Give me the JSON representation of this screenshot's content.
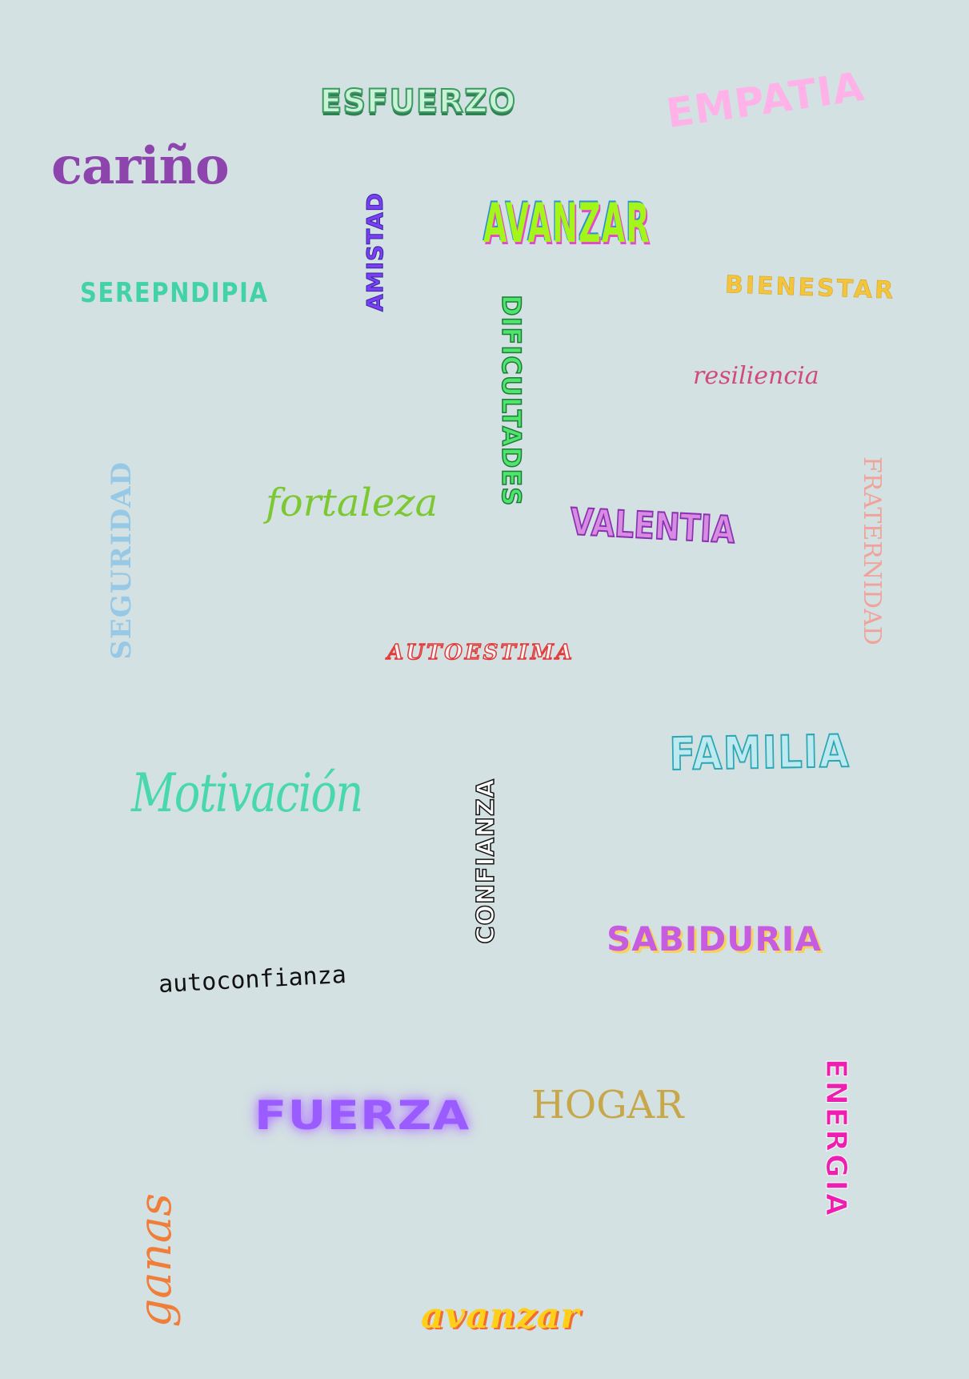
{
  "words": {
    "esfuerzo": "ESFUERZO",
    "empatia": "EMPATIA",
    "carino": "cariño",
    "amistad": "AMISTAD",
    "avanzar_caps": "AVANZAR",
    "serendipia": "SEREPNDIPIA",
    "bienestar": "BIENESTAR",
    "dificultades": "DIFICULTADES",
    "resiliencia": "resiliencia",
    "seguridad": "SEGURIDAD",
    "fortaleza": "fortaleza",
    "valentia": "VALENTIA",
    "fraternidad": "FRATERNIDAD",
    "autoestima": "AUTOESTIMA",
    "familia": "FAMILIA",
    "motivacion": "Motivación",
    "confianza": "CONFIANZA",
    "sabiduria": "SABIDURIA",
    "autoconfianza": "autoconfianza",
    "fuerza": "FUERZA",
    "hogar": "HOGAR",
    "energia": "ENERGIA",
    "ganas": "ganas",
    "avanzar_lower": "avanzar"
  }
}
